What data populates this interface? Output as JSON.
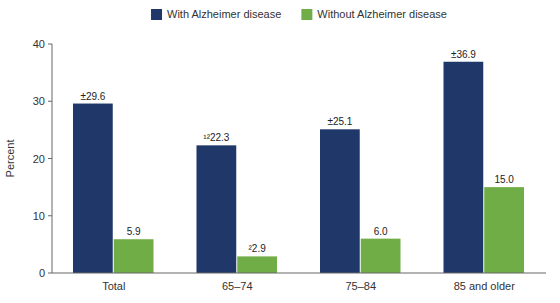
{
  "chart_data": {
    "type": "bar",
    "categories": [
      "Total",
      "65–74",
      "75–84",
      "85 and older"
    ],
    "series": [
      {
        "name": "With Alzheimer disease",
        "color": "#1f3869",
        "values": [
          29.6,
          22.3,
          25.1,
          36.9
        ],
        "value_labels": [
          "±29.6",
          "¹²22.3",
          "±25.1",
          "±36.9"
        ]
      },
      {
        "name": "Without Alzheimer disease",
        "color": "#70ad47",
        "values": [
          5.9,
          2.9,
          6.0,
          15.0
        ],
        "value_labels": [
          "5.9",
          "²2.9",
          "6.0",
          "15.0"
        ]
      }
    ],
    "y_label": "Percent",
    "ylim": [
      0,
      40
    ],
    "yticks": [
      0,
      10,
      20,
      30,
      40
    ],
    "grid": false,
    "legend": "top",
    "data_labels": true
  }
}
